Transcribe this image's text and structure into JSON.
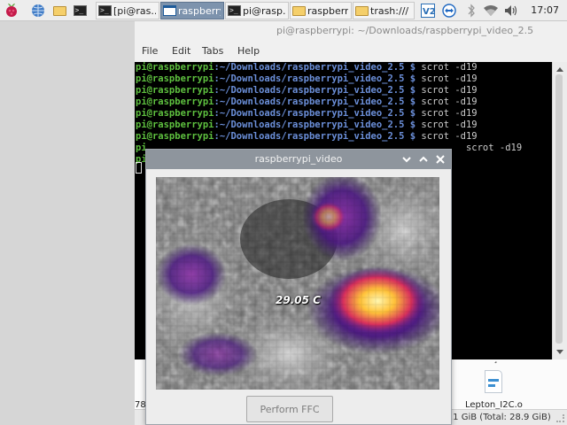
{
  "taskbar": {
    "launchers": [
      {
        "icon": "raspberry-menu-icon"
      },
      {
        "icon": "web-browser-icon"
      },
      {
        "icon": "file-manager-icon"
      },
      {
        "icon": "terminal-icon"
      }
    ],
    "tasks": [
      {
        "label": "[pi@ras...",
        "icon": "terminal-icon",
        "active": false
      },
      {
        "label": "raspberry...",
        "icon": "window-icon",
        "active": true
      },
      {
        "label": "pi@rasp...",
        "icon": "terminal-icon",
        "active": false
      },
      {
        "label": "raspberr...",
        "icon": "folder-icon",
        "active": false
      },
      {
        "label": "trash:///",
        "icon": "folder-icon",
        "active": false
      }
    ],
    "tray": [
      "vnc-icon",
      "teamviewer-icon",
      "bluetooth-icon",
      "wifi-icon",
      "volume-icon"
    ],
    "clock": "17:07"
  },
  "tooltip": "raspberrypi_video",
  "terminal": {
    "title": "pi@raspberrypi: ~/Downloads/raspberrypi_video_2.5",
    "menu": [
      "File",
      "Edit",
      "Tabs",
      "Help"
    ],
    "prompt_user": "pi@raspberrypi",
    "prompt_path": ":~/Downloads/raspberrypi_video_2.5 $",
    "command": " scrot -d19",
    "line_count": 9,
    "partial_lines": [
      {
        "user": "pi",
        "path": "",
        "command": "   scrot -d19"
      },
      {
        "user": "pi",
        "path": "",
        "command": ""
      }
    ]
  },
  "file_manager": {
    "file_label": "Lepton_I2C.o",
    "left_fragment": "78",
    "status_right": ".1 GiB (Total: 28.9 GiB)",
    "mark_glyph": "¸"
  },
  "video_window": {
    "title": "raspberrypi_video",
    "temperature": "29.05 C",
    "ffc_button": "Perform FFC",
    "controls": [
      "minimize-icon",
      "maximize-icon",
      "close-icon"
    ]
  },
  "colors": {
    "prompt_user": "#5ec03f",
    "prompt_path": "#6b8fd9",
    "active_task": "#7d93ad",
    "titlebar": "#8e959d"
  }
}
